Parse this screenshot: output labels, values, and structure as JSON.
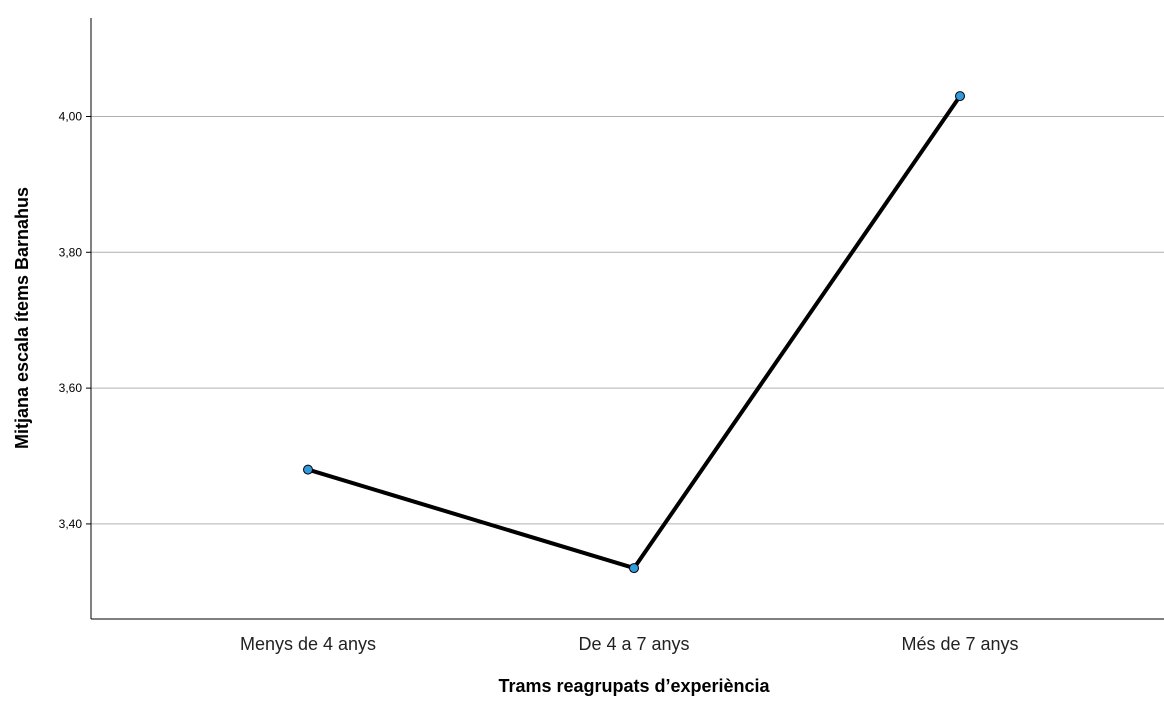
{
  "chart_data": {
    "type": "line",
    "title": "",
    "xlabel": "Trams reagrupats d’experiència",
    "ylabel": "Mitjana escala ítems Barnahus",
    "categories": [
      "Menys de 4 anys",
      "De 4 a 7 anys",
      "Més de 7 anys"
    ],
    "series": [
      {
        "values": [
          3.48,
          3.335,
          4.03
        ]
      }
    ],
    "yticks": [
      3.4,
      3.6,
      3.8,
      4.0
    ],
    "ytick_labels": [
      "3,40",
      "3,60",
      "3,80",
      "4,00"
    ],
    "ylim": [
      3.26,
      4.145
    ],
    "grid": "horizontal",
    "colors": {
      "line": "#000000",
      "marker": "#3399dd",
      "grid": "#b0b0b0"
    }
  }
}
